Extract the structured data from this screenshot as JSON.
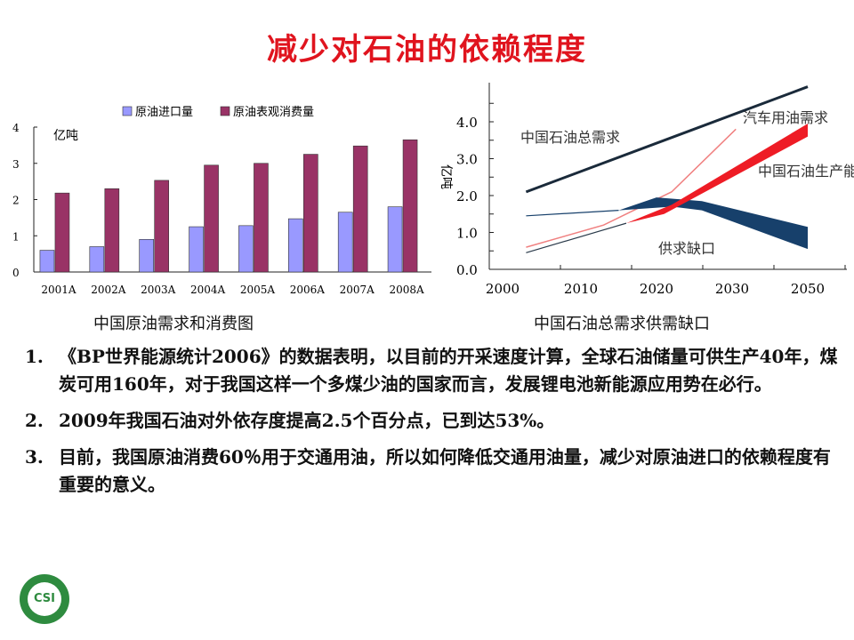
{
  "title": "减少对石油的依赖程度",
  "chart_data": [
    {
      "type": "bar",
      "title": "",
      "ylabel": "亿吨",
      "ylim": [
        0,
        4
      ],
      "yticks": [
        "0",
        "1",
        "2",
        "3",
        "4"
      ],
      "categories": [
        "2001A",
        "2002A",
        "2003A",
        "2004A",
        "2005A",
        "2006A",
        "2007A",
        "2008A"
      ],
      "series": [
        {
          "name": "原油进口量",
          "color": "#9999ff",
          "values": [
            0.6,
            0.7,
            0.9,
            1.25,
            1.28,
            1.47,
            1.65,
            1.8
          ]
        },
        {
          "name": "原油表观消费量",
          "color": "#993366",
          "values": [
            2.18,
            2.3,
            2.53,
            2.95,
            3.0,
            3.25,
            3.48,
            3.65
          ]
        }
      ],
      "legend": "top",
      "caption": "中国原油需求和消费图"
    },
    {
      "type": "line",
      "ylabel": "亿吨",
      "ylim": [
        0,
        4.9
      ],
      "yticks": [
        "0.0",
        "1.0",
        "2.0",
        "3.0",
        "4.0"
      ],
      "xticks": [
        "2000",
        "2010",
        "2020",
        "2030",
        "2050"
      ],
      "series": [
        {
          "name": "中国石油总需求",
          "color": "#1a2a3a",
          "points": [
            [
              2003,
              2.1
            ],
            [
              2050,
              4.95
            ]
          ]
        },
        {
          "name": "汽车用油需求",
          "color": "#f08080",
          "points": [
            [
              2003,
              0.6
            ],
            [
              2013,
              1.2
            ],
            [
              2022,
              2.1
            ],
            [
              2031,
              3.8
            ]
          ]
        },
        {
          "name": "中国石油生产能力",
          "color": "#17406b",
          "band_upper": [
            [
              2015,
              1.6
            ],
            [
              2020,
              1.95
            ],
            [
              2026,
              1.85
            ],
            [
              2050,
              1.15
            ]
          ],
          "band_lower": [
            [
              2015,
              1.6
            ],
            [
              2022,
              1.7
            ],
            [
              2026,
              1.6
            ],
            [
              2050,
              0.55
            ]
          ],
          "line": [
            [
              2003,
              1.45
            ],
            [
              2015,
              1.6
            ]
          ]
        },
        {
          "name": "供求缺口",
          "color": "#ee1c25",
          "band_upper": [
            [
              2016,
              1.25
            ],
            [
              2022,
              1.75
            ],
            [
              2050,
              3.95
            ]
          ],
          "band_lower": [
            [
              2016,
              1.25
            ],
            [
              2021,
              1.5
            ],
            [
              2050,
              3.6
            ]
          ],
          "line": [
            [
              2003,
              0.45
            ],
            [
              2016,
              1.25
            ]
          ]
        }
      ],
      "caption": "中国石油总需求供需缺口"
    }
  ],
  "list": [
    {
      "num": "1.",
      "text": "《BP世界能源统计2006》的数据表明，以目前的开采速度计算，全球石油储量可供生产40年，煤炭可用160年，对于我国这样一个多煤少油的国家而言，发展锂电池新能源应用势在必行。"
    },
    {
      "num": "2.",
      "text": "2009年我国石油对外依存度提高2.5个百分点，已到达53%。"
    },
    {
      "num": "3.",
      "text": "目前，我国原油消费60％用于交通用油，所以如何降低交通用油量，减少对原油进口的依赖程度有重要的意义。"
    }
  ],
  "logo": {
    "text": "CSI"
  }
}
